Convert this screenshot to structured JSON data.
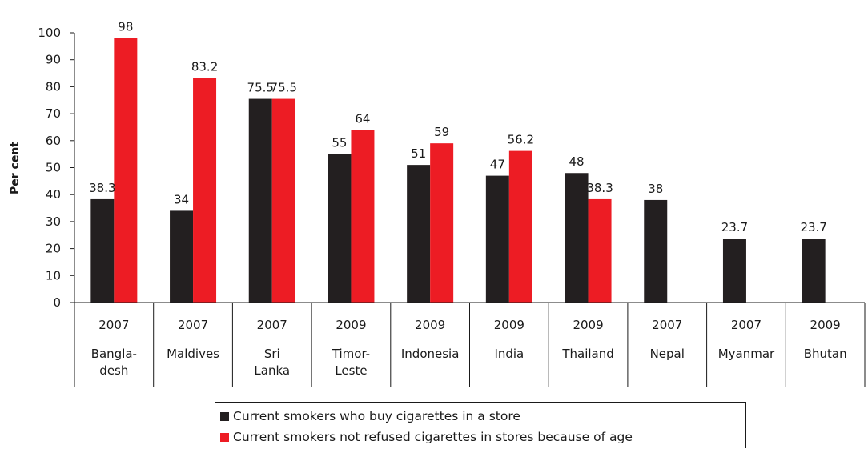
{
  "chart_data": {
    "type": "bar",
    "ylabel": "Per cent",
    "xlabel": "",
    "ylim": [
      0,
      100
    ],
    "yticks": [
      0,
      10,
      20,
      30,
      40,
      50,
      60,
      70,
      80,
      90,
      100
    ],
    "grid": false,
    "legend_position": "bottom",
    "categories": [
      {
        "year": "2007",
        "name": [
          "Bangla-",
          "desh"
        ]
      },
      {
        "year": "2007",
        "name": [
          "Maldives"
        ]
      },
      {
        "year": "2007",
        "name": [
          "Sri",
          "Lanka"
        ]
      },
      {
        "year": "2009",
        "name": [
          "Timor-",
          "Leste"
        ]
      },
      {
        "year": "2009",
        "name": [
          "Indonesia"
        ]
      },
      {
        "year": "2009",
        "name": [
          "India"
        ]
      },
      {
        "year": "2009",
        "name": [
          "Thailand"
        ]
      },
      {
        "year": "2007",
        "name": [
          "Nepal"
        ]
      },
      {
        "year": "2007",
        "name": [
          "Myanmar"
        ]
      },
      {
        "year": "2009",
        "name": [
          "Bhutan"
        ]
      }
    ],
    "series": [
      {
        "name": "Current smokers who buy cigarettes in a store",
        "color": "#231f20",
        "values": [
          38.3,
          34,
          75.5,
          55,
          51,
          47,
          48,
          38,
          23.7,
          23.7
        ],
        "labels": [
          "38.3",
          "34",
          "75.5",
          "55",
          "51",
          "47",
          "48",
          "38",
          "23.7",
          "23.7"
        ]
      },
      {
        "name": "Current smokers not refused cigarettes in stores because of age",
        "color": "#ed1c24",
        "values": [
          98,
          83.2,
          75.5,
          64,
          59,
          56.2,
          38.3,
          null,
          null,
          null
        ],
        "labels": [
          "98",
          "83.2",
          "75.5",
          "64",
          "59",
          "56.2",
          "38.3",
          null,
          null,
          null
        ]
      }
    ]
  }
}
